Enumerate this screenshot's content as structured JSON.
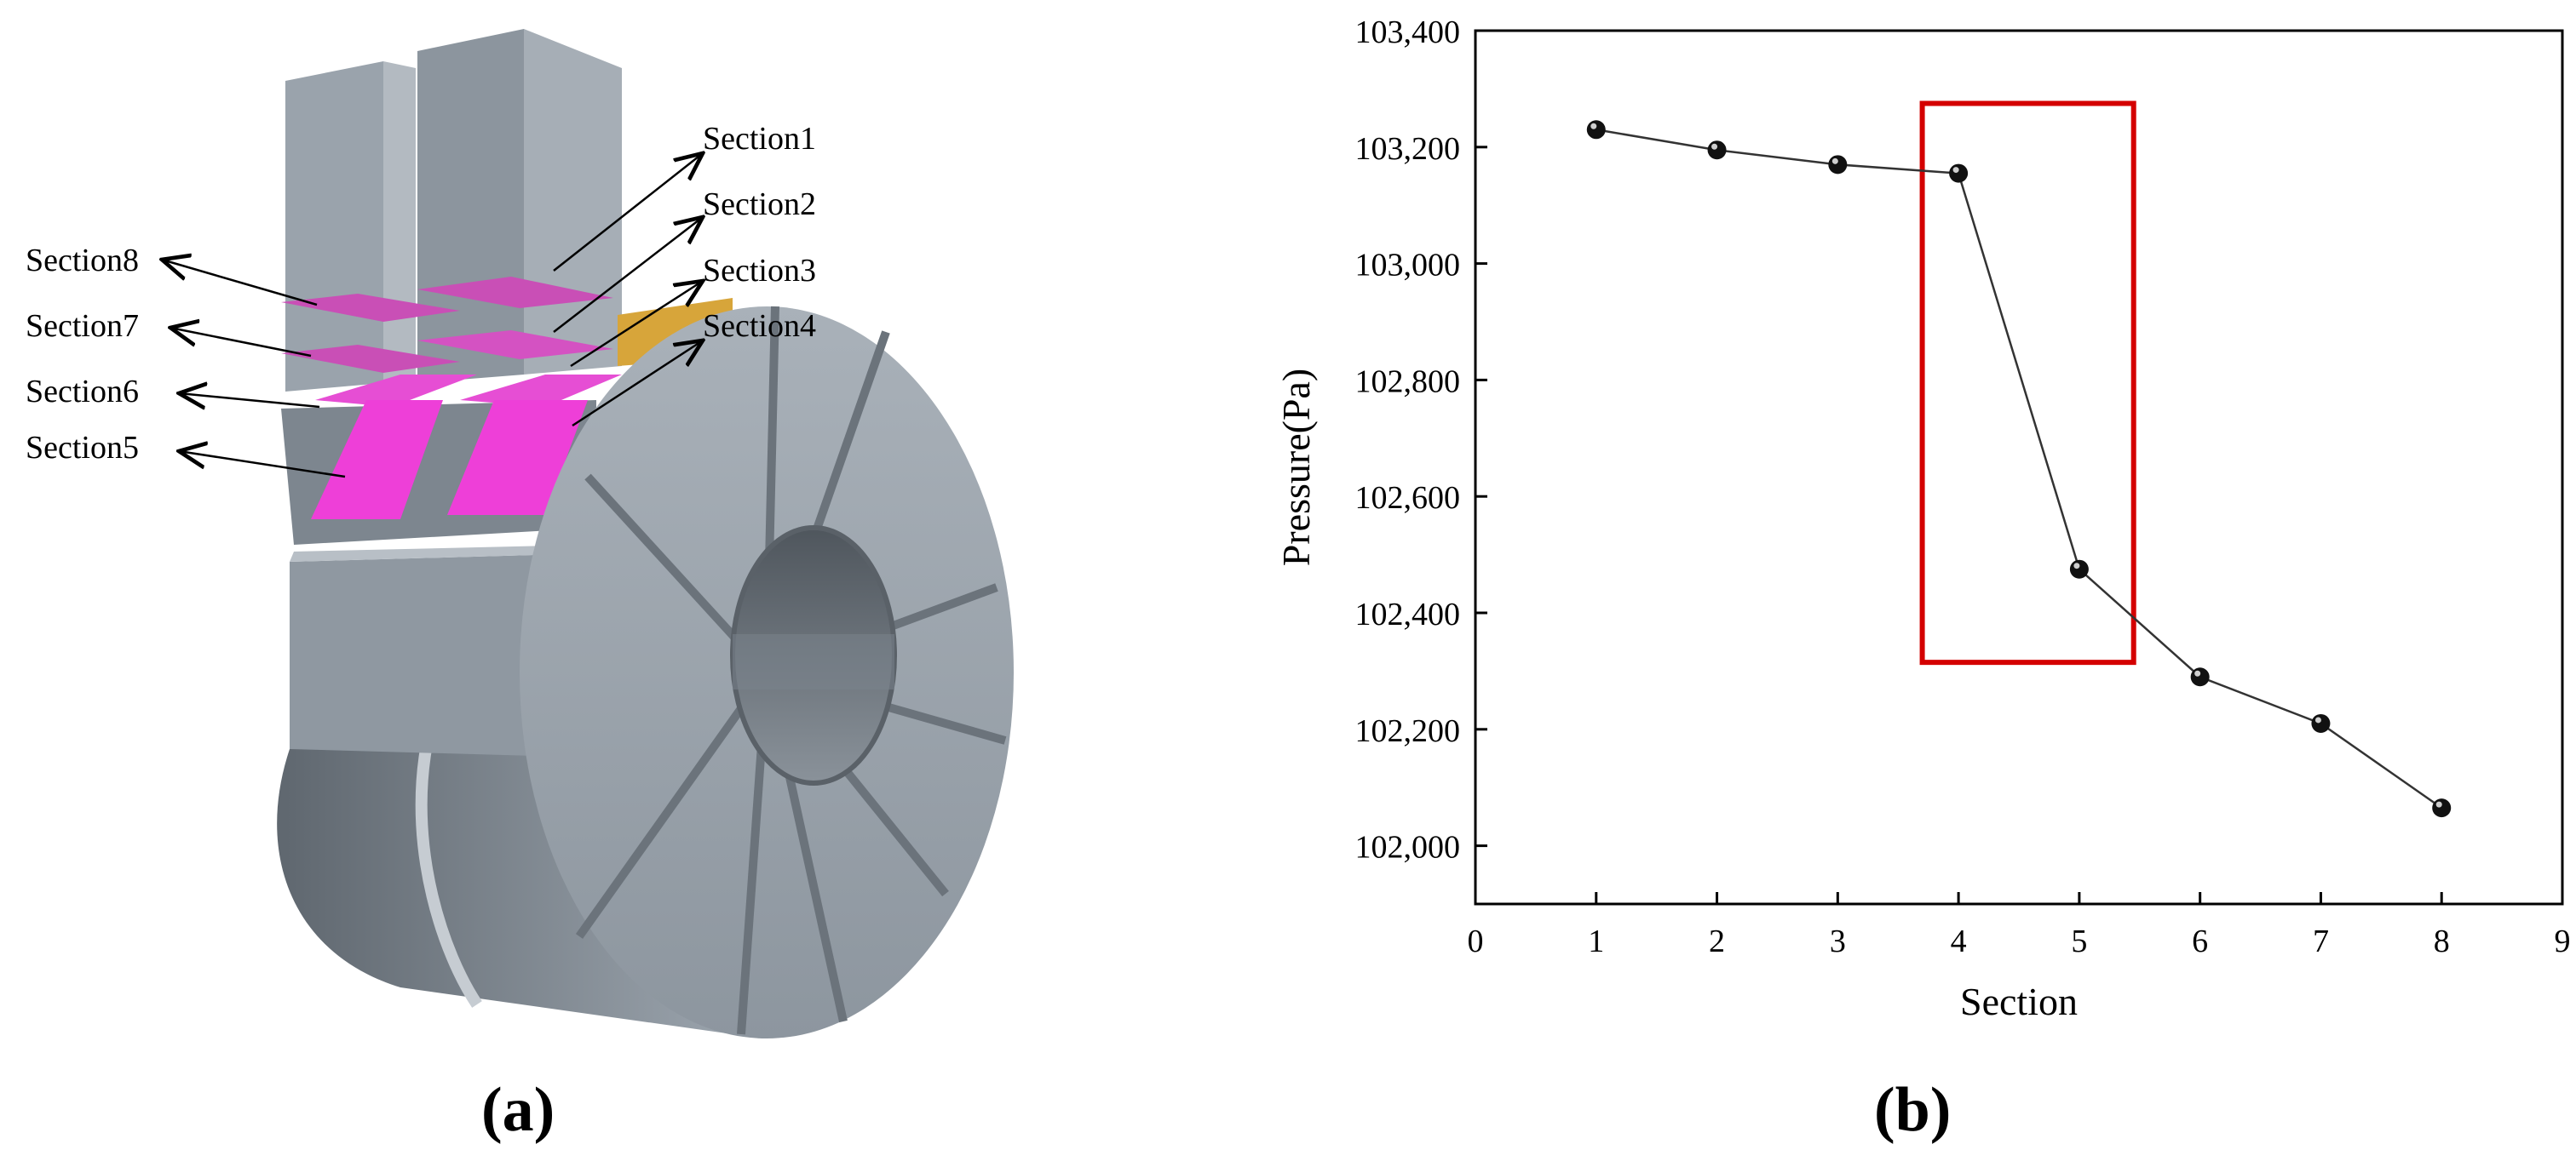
{
  "figure": {
    "label_a": "(a)",
    "label_b": "(b)"
  },
  "diagram": {
    "section_labels": [
      "Section1",
      "Section2",
      "Section3",
      "Section4",
      "Section5",
      "Section6",
      "Section7",
      "Section8"
    ],
    "colors": {
      "body": "#9aa3ac",
      "body_dark": "#6f777f",
      "body_light": "#b5bcc3",
      "section_plane": "#ee3fd8",
      "outlet": "#d7a53a"
    }
  },
  "chart_data": {
    "type": "line",
    "title": "",
    "xlabel": "Section",
    "ylabel": "Pressure(Pa)",
    "xlim": [
      0,
      9
    ],
    "ylim": [
      101900,
      103400
    ],
    "x_ticks": [
      "0",
      "1",
      "2",
      "3",
      "4",
      "5",
      "6",
      "7",
      "8",
      "9"
    ],
    "y_ticks": [
      "102,000",
      "102,200",
      "102,400",
      "102,600",
      "102,800",
      "103,000",
      "103,200",
      "103,400"
    ],
    "y_tick_values": [
      102000,
      102200,
      102400,
      102600,
      102800,
      103000,
      103200,
      103400
    ],
    "x": [
      1,
      2,
      3,
      4,
      5,
      6,
      7,
      8
    ],
    "y": [
      103230,
      103195,
      103170,
      103155,
      102475,
      102290,
      102210,
      102065
    ],
    "grid": false,
    "highlight_box": {
      "x_range": [
        3.7,
        5.45
      ],
      "y_range": [
        102315,
        103275
      ],
      "color": "#d40000"
    },
    "line_color": "#333333",
    "marker_color": "#111111"
  }
}
